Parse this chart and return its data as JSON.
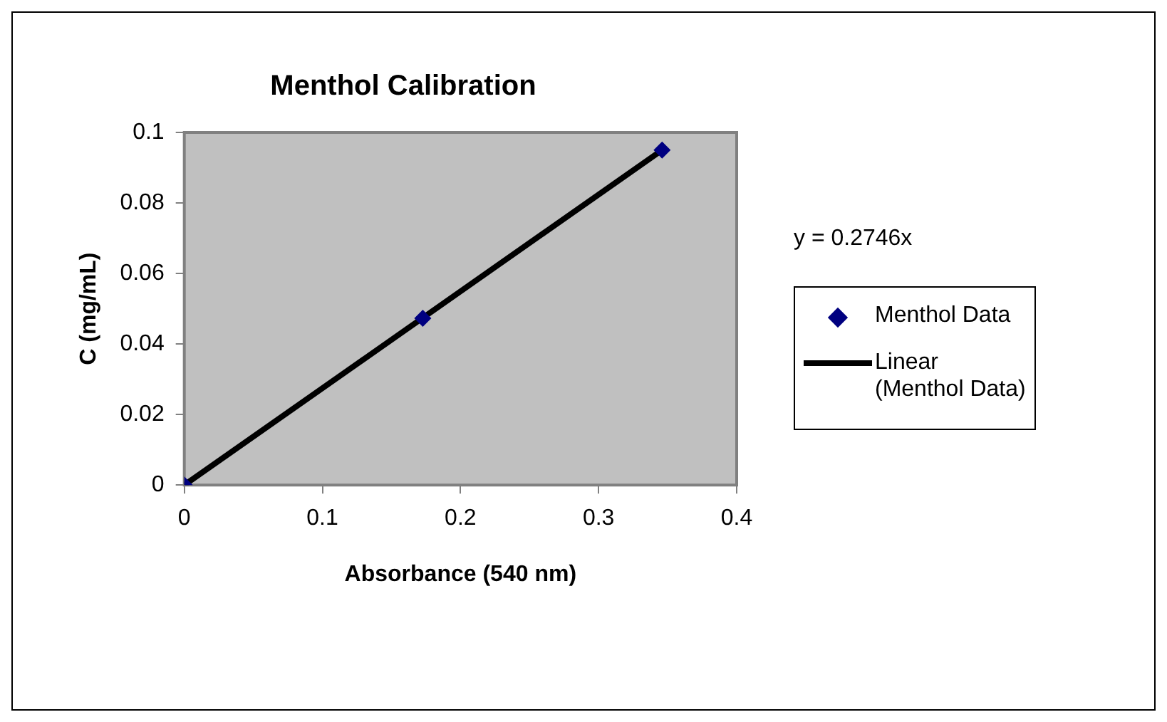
{
  "chart_data": {
    "type": "scatter",
    "title": "Menthol Calibration",
    "xlabel": "Absorbance (540 nm)",
    "ylabel": "C (mg/mL)",
    "series": [
      {
        "name": "Menthol Data",
        "type": "scatter",
        "color": "#000080",
        "x": [
          0,
          0.1727,
          0.346
        ],
        "values": [
          0,
          0.0473,
          0.095
        ],
        "marker": "diamond"
      },
      {
        "name": "Linear (Menthol Data)",
        "type": "line",
        "color": "#000000",
        "x": [
          0,
          0.346
        ],
        "values": [
          0,
          0.095
        ],
        "marker": "none",
        "line_style": "solid"
      }
    ],
    "annotations": [
      "y = 0.2746x"
    ],
    "xlim": [
      0,
      0.4
    ],
    "xticks": [
      0,
      0.1,
      0.2,
      0.3,
      0.4
    ],
    "ylim": [
      0,
      0.1
    ],
    "yticks": [
      0,
      0.02,
      0.04,
      0.06,
      0.08,
      0.1
    ],
    "grid": false,
    "legend": "right"
  }
}
